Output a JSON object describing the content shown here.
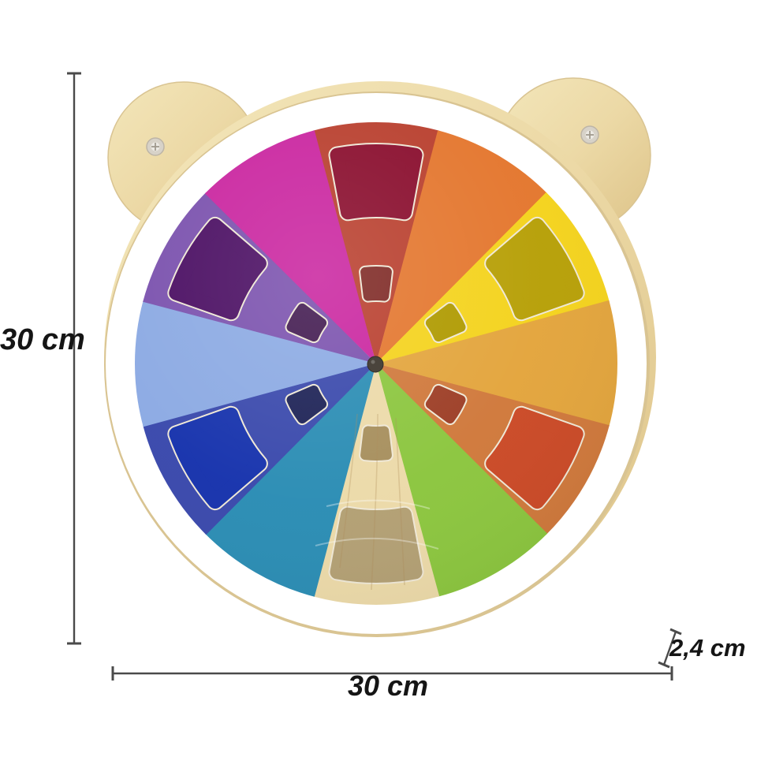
{
  "dimensions": {
    "height": {
      "label": "30 cm"
    },
    "width": {
      "label": "30 cm"
    },
    "depth": {
      "label": "2,4 cm"
    },
    "line_color": "#4a4a4a"
  },
  "board": {
    "wood_color_light": "#f3e6ba",
    "wood_color": "#ecd9a6",
    "wood_color_dark": "#ddc388",
    "edge_color": "#d9c492",
    "ring_color": "#ffffff",
    "pin_color": "#4a443c",
    "screw_color": "#d7d2c8",
    "screw_slot_color": "#a09a8e",
    "window_edge_color": "#efe8d6",
    "grain_color": "#ab8c55"
  },
  "wheel": {
    "segments": [
      {
        "name": "red",
        "color": "#b9402f",
        "windows": {
          "large": "#8a0e2e",
          "small": "#7f2a26"
        }
      },
      {
        "name": "orange",
        "color": "#e4772f"
      },
      {
        "name": "yellow",
        "color": "#f4d31d",
        "windows": {
          "large": "#b7a008",
          "small": "#af9a00"
        }
      },
      {
        "name": "amber",
        "color": "#e3a53d"
      },
      {
        "name": "burnt-orange",
        "color": "#d0793c",
        "windows": {
          "large": "#cb4a27",
          "small": "#9d3e26"
        }
      },
      {
        "name": "green",
        "color": "#8cc63f"
      },
      {
        "name": "wood",
        "color": "#ecdaa9",
        "windows": {
          "large": "#b3a074",
          "small": "#a78f5d"
        }
      },
      {
        "name": "teal",
        "color": "#2b8db4"
      },
      {
        "name": "royal-blue",
        "color": "#3a49ac",
        "windows": {
          "large": "#1733ad",
          "small": "#1d2256"
        }
      },
      {
        "name": "periwinkle",
        "color": "#8caae3"
      },
      {
        "name": "purple",
        "color": "#7b52ae",
        "windows": {
          "large": "#4b0f63",
          "small": "#421a50"
        }
      },
      {
        "name": "magenta",
        "color": "#ca26a0"
      }
    ]
  }
}
